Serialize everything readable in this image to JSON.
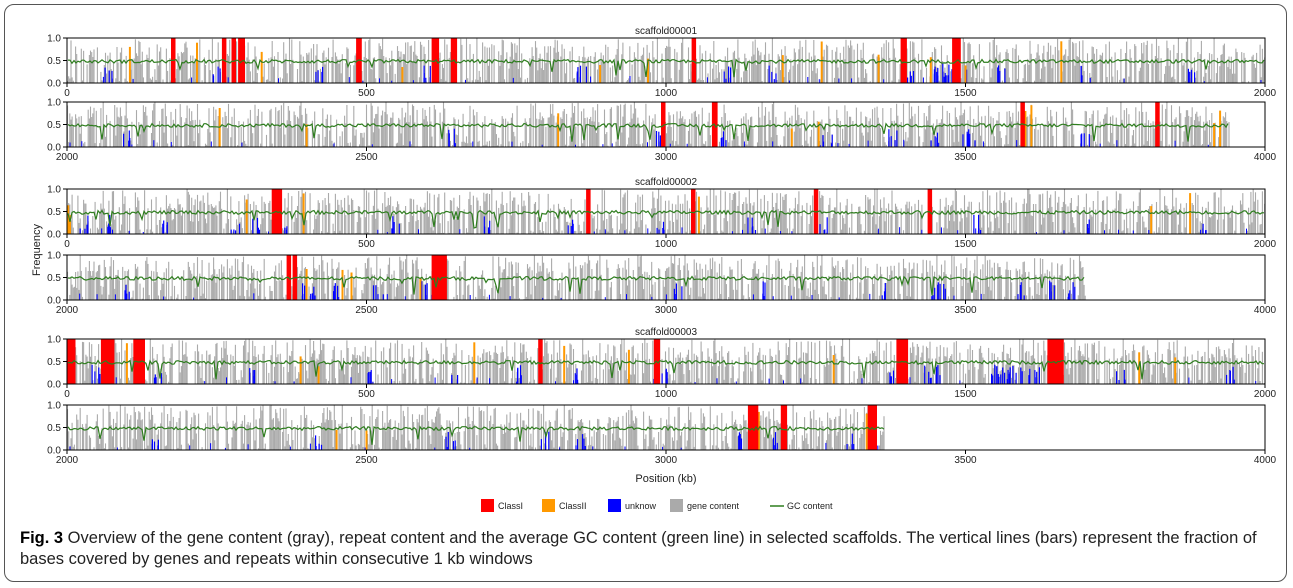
{
  "figure": {
    "caption_label": "Fig. 3",
    "caption_text": " Overview of the gene content (gray), repeat content and the average GC content (green line) in selected scaffolds. The vertical lines (bars) represent the fraction of bases covered by genes and repeats within consecutive 1 kb windows"
  },
  "chart_data": {
    "type": "bar",
    "ylabel": "Frequency",
    "xlabel": "Position (kb)",
    "ylim": [
      0,
      1.0
    ],
    "yticks": [
      "0.0",
      "0.5",
      "1.0"
    ],
    "series_colors": {
      "ClassI": "#ff0000",
      "ClassII": "#ff9900",
      "unknow": "#0000ff",
      "gene content": "#aaaaaa",
      "GC content": "#2e7d1e"
    },
    "legend": [
      {
        "name": "ClassI",
        "kind": "box",
        "color": "#ff0000"
      },
      {
        "name": "ClassII",
        "kind": "box",
        "color": "#ff9900"
      },
      {
        "name": "unknow",
        "kind": "box",
        "color": "#0000ff"
      },
      {
        "name": "gene content",
        "kind": "box",
        "color": "#aaaaaa"
      },
      {
        "name": "GC content",
        "kind": "line",
        "color": "#2e7d1e"
      }
    ],
    "legend_position": "bottom-center",
    "gc_mean": 0.48,
    "panels": [
      {
        "scaffold": "scaffold00001",
        "xlim": [
          0,
          2000
        ],
        "xticks": [
          "0",
          "500",
          "1000",
          "1500",
          "2000"
        ],
        "data_end": 2000,
        "classI": [
          177,
          262,
          278,
          289,
          290,
          293,
          486,
          488,
          612,
          614,
          617,
          644,
          647,
          1046,
          1395,
          1398,
          1481,
          1485,
          1488
        ],
        "classII": [
          105,
          217,
          325,
          560,
          890,
          970,
          1195,
          1260,
          1355,
          1442,
          1500,
          1660
        ],
        "unknow": [
          70,
          250,
          420,
          600,
          860,
          1100,
          1180,
          1410,
          1448,
          1455,
          1463,
          1471,
          1495,
          1560,
          1700,
          1880
        ]
      },
      {
        "scaffold": "",
        "xlim": [
          2000,
          4000
        ],
        "xticks": [
          "2000",
          "2500",
          "3000",
          "3500",
          "4000"
        ],
        "data_end": 3940,
        "classI": [
          2995,
          3080,
          3082,
          3595,
          3820
        ],
        "classII": [
          2255,
          2400,
          2820,
          3210,
          3255,
          3600,
          3610,
          3915,
          3925
        ],
        "unknow": [
          2100,
          2640,
          2985,
          3100,
          3270,
          3380,
          3450,
          3500,
          3510,
          3700
        ]
      },
      {
        "scaffold": "scaffold00002",
        "xlim": [
          0,
          2000
        ],
        "xticks": [
          "0",
          "500",
          "1000",
          "1500",
          "2000"
        ],
        "data_end": 2000,
        "classI": [
          345,
          350,
          352,
          355,
          870,
          1045,
          1250,
          1440
        ],
        "classII": [
          2,
          5,
          300,
          395,
          1055,
          1810,
          1875
        ],
        "unknow": [
          30,
          75,
          160,
          280,
          315,
          360,
          550,
          700,
          840,
          990,
          1145,
          1265,
          1520,
          1700,
          1900
        ]
      },
      {
        "scaffold": "",
        "xlim": [
          2000,
          4000
        ],
        "xticks": [
          "2000",
          "2500",
          "3000",
          "3500",
          "4000"
        ],
        "data_end": 3700,
        "classI": [
          2370,
          2380,
          2612,
          2618,
          2625,
          2630
        ],
        "classII": [
          2400,
          2460,
          2475,
          2590
        ],
        "unknow": [
          2100,
          2390,
          2415,
          2450,
          2520,
          2600,
          3020,
          3160,
          3360,
          3450,
          3460,
          3590,
          3640,
          3680
        ]
      },
      {
        "scaffold": "scaffold00003",
        "xlim": [
          0,
          2000
        ],
        "xticks": [
          "0",
          "500",
          "1000",
          "1500",
          "2000"
        ],
        "data_end": 2000,
        "classI": [
          3,
          6,
          10,
          60,
          63,
          66,
          69,
          72,
          75,
          114,
          117,
          120,
          123,
          126,
          790,
          983,
          986,
          1388,
          1392,
          1396,
          1400,
          1640,
          1645,
          1650,
          1655,
          1660
        ],
        "classII": [
          100,
          390,
          420,
          680,
          830,
          938,
          1280,
          1645,
          1790,
          1850
        ],
        "unknow": [
          50,
          150,
          310,
          510,
          650,
          760,
          850,
          1000,
          1380,
          1440,
          1450,
          1545,
          1560,
          1570,
          1580,
          1600,
          1620,
          1760,
          1940
        ]
      },
      {
        "scaffold": "",
        "xlim": [
          2000,
          4000
        ],
        "xticks": [
          "2000",
          "2500",
          "3000",
          "3500",
          "4000"
        ],
        "data_end": 3365,
        "classI": [
          3140,
          3143,
          3146,
          3150,
          3195,
          3198,
          3340,
          3345,
          3348
        ],
        "classII": [
          2450,
          2500,
          3155,
          3335
        ],
        "unknow": [
          2150,
          2420,
          2640,
          2800,
          2860,
          3125,
          3180,
          3310
        ]
      }
    ]
  }
}
